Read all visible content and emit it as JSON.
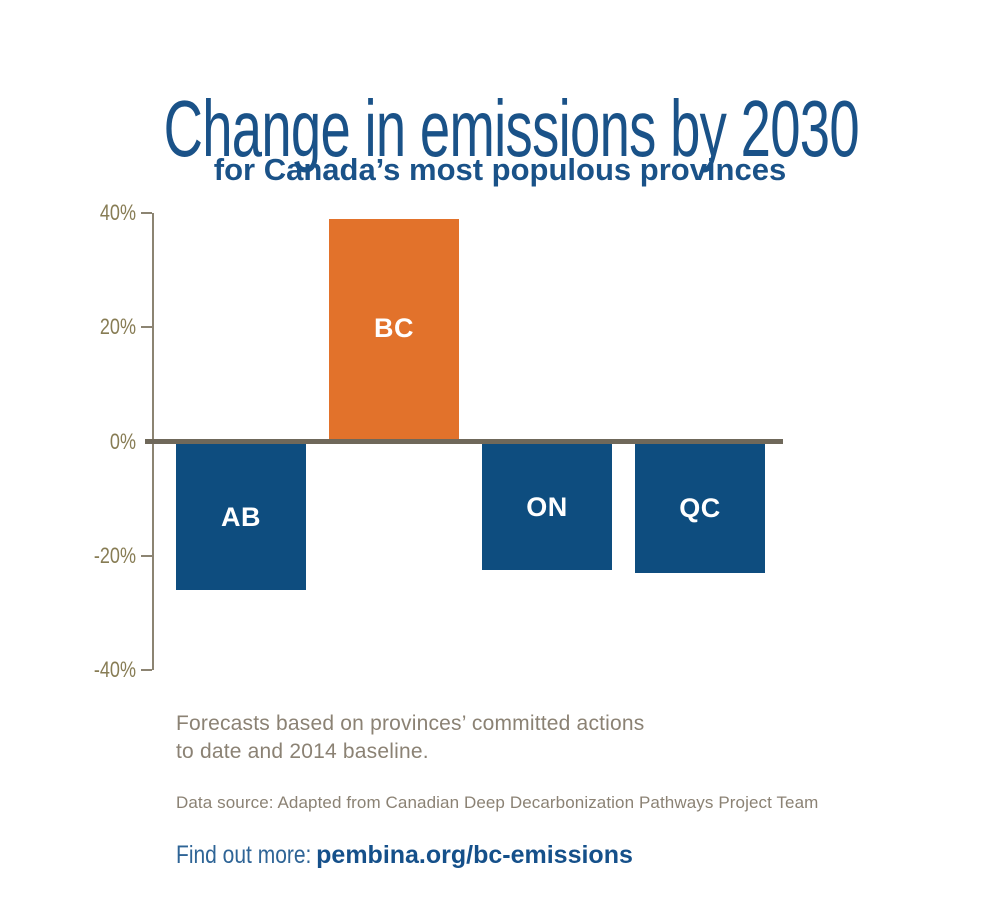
{
  "header": {
    "title": "Change in emissions by 2030",
    "subtitle": "for Canada’s most populous provinces"
  },
  "chart_data": {
    "type": "bar",
    "categories": [
      "AB",
      "BC",
      "ON",
      "QC"
    ],
    "values": [
      -26,
      39,
      -22.5,
      -23
    ],
    "bar_colors": [
      "#0E4D7F",
      "#E2722B",
      "#0E4D7F",
      "#0E4D7F"
    ],
    "positive_color": "#E2722B",
    "negative_color": "#0E4D7F",
    "title": "Change in emissions by 2030",
    "subtitle": "for Canada’s most populous provinces",
    "xlabel": "",
    "ylabel": "",
    "ylim": [
      -40,
      40
    ],
    "y_ticks": [
      "40%",
      "20%",
      "0%",
      "-20%",
      "-40%"
    ],
    "grid": false,
    "legend": false,
    "bar_labels_inside": true,
    "axis_color": "#8C8472",
    "zero_line_color": "#6F685A",
    "tick_label_color": "#877C54"
  },
  "footer": {
    "note_line1": "Forecasts based on provinces’ committed actions",
    "note_line2": "to date and 2014 baseline.",
    "source": "Data source: Adapted from Canadian Deep Decarbonization Pathways Project Team",
    "find_out_more_label": "Find out more:",
    "find_out_more_url": "pembina.org/bc-emissions"
  },
  "colors": {
    "title_blue": "#1A5288",
    "bar_blue": "#0E4D7F",
    "bar_orange": "#E2722B",
    "axis_label_olive": "#877C54",
    "zero_line": "#6F685A",
    "axis_line": "#8C8472",
    "note_gray": "#8B8274",
    "link_blue": "#15508A"
  }
}
